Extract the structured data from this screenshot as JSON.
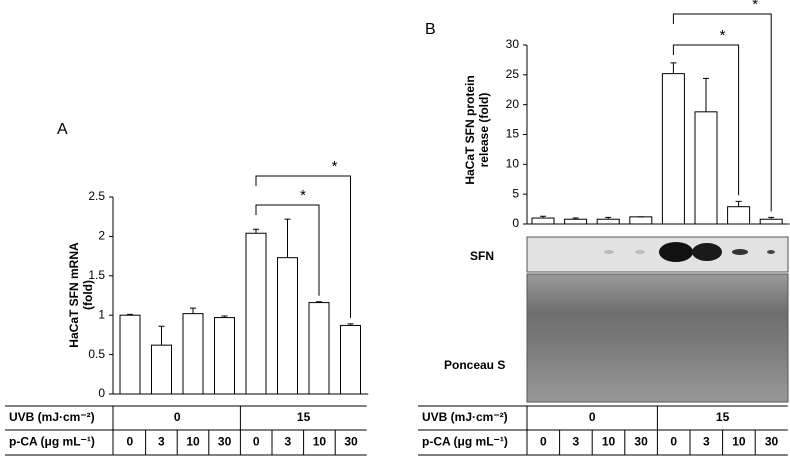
{
  "chart_data": [
    {
      "type": "bar",
      "panel": "A",
      "ylabel": [
        "HaCaT SFN mRNA",
        "(fold)"
      ],
      "categories": [
        "0",
        "3",
        "10",
        "30",
        "0",
        "3",
        "10",
        "30"
      ],
      "values": [
        1.0,
        0.62,
        1.02,
        0.97,
        2.04,
        1.73,
        1.16,
        0.87
      ],
      "errors": [
        0.01,
        0.24,
        0.07,
        0.02,
        0.05,
        0.49,
        0.01,
        0.02
      ],
      "color": "#ffffff",
      "ylim": [
        0,
        2.5
      ],
      "yticks": [
        0,
        0.5,
        1,
        1.5,
        2,
        2.5
      ],
      "annotations": [
        "*",
        "*"
      ],
      "table": {
        "rows": [
          {
            "label": "UVB (mJ·cm⁻²)",
            "groups": [
              "0",
              "15"
            ]
          },
          {
            "label": "p-CA (μg mL⁻¹)"
          }
        ]
      }
    },
    {
      "type": "bar",
      "panel": "B",
      "ylabel": [
        "HaCaT SFN protein",
        "release (fold)"
      ],
      "categories": [
        "0",
        "3",
        "10",
        "30",
        "0",
        "3",
        "10",
        "30"
      ],
      "values": [
        1.0,
        0.8,
        0.8,
        1.2,
        25.2,
        18.8,
        2.9,
        0.8
      ],
      "errors": [
        0.3,
        0.2,
        0.3,
        0,
        1.8,
        5.6,
        0.9,
        0.3
      ],
      "color": "#ffffff",
      "ylim": [
        0,
        30
      ],
      "yticks": [
        0,
        5,
        10,
        15,
        20,
        25,
        30
      ],
      "annotations": [
        "*",
        "*"
      ],
      "blot_labels": [
        "SFN",
        "Ponceau S"
      ],
      "table": {
        "rows": [
          {
            "label": "UVB (mJ·cm⁻²)",
            "groups": [
              "0",
              "15"
            ]
          },
          {
            "label": "p-CA (μg mL⁻¹)"
          }
        ]
      }
    }
  ]
}
